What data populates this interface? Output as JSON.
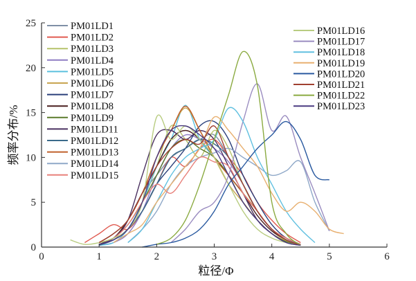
{
  "chart_data": {
    "type": "line",
    "title": "",
    "xlabel": "粒径/Φ",
    "ylabel": "频率分布/%",
    "xlim": [
      0,
      6
    ],
    "ylim": [
      0,
      25
    ],
    "xticks": [
      "0",
      "1",
      "2",
      "3",
      "4",
      "5",
      "6"
    ],
    "yticks": [
      "0",
      "5",
      "10",
      "15",
      "20",
      "25"
    ],
    "grid": false,
    "legend_placement": "top-left and top-right (two columns)",
    "series": [
      {
        "name": "PM01LD1",
        "color": "#7f8fa6",
        "x0": 1.0,
        "step": 0.25,
        "y": [
          0.5,
          1.5,
          3,
          6,
          8,
          10,
          11,
          12,
          12.5,
          10,
          7,
          4,
          2,
          1,
          0.3
        ]
      },
      {
        "name": "PM01LD2",
        "color": "#e05a50",
        "x0": 0.75,
        "step": 0.25,
        "y": [
          0.5,
          1.5,
          2.5,
          2,
          4,
          7,
          10,
          9,
          11,
          12,
          10,
          8,
          5,
          3,
          1.5,
          0.5
        ]
      },
      {
        "name": "PM01LD3",
        "color": "#b5c26a",
        "x0": 1.0,
        "step": 0.25,
        "y": [
          0.3,
          1,
          2,
          5,
          9,
          13.5,
          12,
          10,
          13,
          11,
          7,
          4,
          2,
          1,
          0.3
        ]
      },
      {
        "name": "PM01LD4",
        "color": "#8e7cc3",
        "x0": 1.0,
        "step": 0.25,
        "y": [
          0.2,
          0.5,
          1.5,
          4,
          8,
          11,
          12.5,
          12,
          11,
          9.5,
          7,
          4,
          2,
          1,
          0.3
        ]
      },
      {
        "name": "PM01LD5",
        "color": "#5bc0de",
        "x0": 1.0,
        "step": 0.25,
        "y": [
          0.2,
          0.5,
          2,
          5,
          9,
          12,
          15.8,
          12,
          10,
          8,
          6,
          4,
          2,
          1,
          0.3
        ]
      },
      {
        "name": "PM01LD6",
        "color": "#c8a550",
        "x0": 1.0,
        "step": 0.25,
        "y": [
          0.3,
          1,
          3,
          6,
          10,
          13,
          15.5,
          13,
          10,
          7,
          5,
          3,
          1.5,
          0.7,
          0.2
        ]
      },
      {
        "name": "PM01LD7",
        "color": "#2a3f7a",
        "x0": 1.0,
        "step": 0.25,
        "y": [
          0.3,
          0.8,
          2,
          4,
          7,
          9,
          11,
          13.5,
          14,
          12,
          8,
          5,
          2.5,
          1,
          0.3
        ]
      },
      {
        "name": "PM01LD8",
        "color": "#4a1f1f",
        "x0": 1.0,
        "step": 0.25,
        "y": [
          0.5,
          1,
          3,
          6,
          9,
          12,
          13,
          12,
          10,
          8,
          6,
          3.5,
          1.8,
          0.8,
          0.2
        ]
      },
      {
        "name": "PM01LD9",
        "color": "#5a7a2a",
        "x0": 1.0,
        "step": 0.25,
        "y": [
          0.3,
          1,
          2.5,
          5,
          8,
          11,
          12,
          11,
          10,
          8,
          5,
          3,
          1.5,
          0.6,
          0.2
        ]
      },
      {
        "name": "PM01LD11",
        "color": "#4a3060",
        "x0": 1.0,
        "step": 0.25,
        "y": [
          0.3,
          1,
          3,
          8,
          12.5,
          13,
          12,
          13,
          12,
          9,
          6,
          3,
          1.5,
          0.5,
          0.2
        ]
      },
      {
        "name": "PM01LD12",
        "color": "#3a6a8a",
        "x0": 1.0,
        "step": 0.25,
        "y": [
          0.2,
          0.8,
          2,
          4,
          7,
          10,
          11,
          12,
          11.5,
          10,
          7,
          4,
          2,
          0.8,
          0.2
        ]
      },
      {
        "name": "PM01LD13",
        "color": "#c0602a",
        "x0": 1.0,
        "step": 0.25,
        "y": [
          0.5,
          1.5,
          3,
          6,
          10,
          13,
          15.7,
          13,
          10,
          8,
          6,
          4,
          2,
          1,
          0.3
        ]
      },
      {
        "name": "PM01LD14",
        "color": "#8fa8c8",
        "x0": 1.5,
        "step": 0.25,
        "y": [
          0.5,
          2,
          4,
          7,
          9,
          10,
          10.5,
          11,
          10,
          9,
          8,
          8.5,
          9.5,
          5,
          1.8
        ]
      },
      {
        "name": "PM01LD15",
        "color": "#e8807a",
        "x0": 1.0,
        "step": 0.25,
        "y": [
          0.5,
          1,
          2.5,
          5,
          7,
          6,
          8,
          10,
          9.5,
          9,
          6,
          4,
          2,
          1,
          0.3
        ]
      },
      {
        "name": "PM01LD16",
        "color": "#b8cc80",
        "x0": 0.5,
        "step": 0.25,
        "y": [
          0.8,
          0.3,
          0.5,
          1,
          2,
          5,
          14.5,
          12,
          13.5,
          12,
          10,
          7,
          4,
          2,
          1,
          0.5,
          0.2
        ]
      },
      {
        "name": "PM01LD17",
        "color": "#9a8cc0",
        "x0": 2.25,
        "step": 0.25,
        "y": [
          0.5,
          2,
          4,
          5,
          8,
          14,
          18.2,
          13,
          14.6,
          10,
          6,
          1.8
        ]
      },
      {
        "name": "PM01LD18",
        "color": "#60c0e0",
        "x0": 1.5,
        "step": 0.25,
        "y": [
          0.5,
          2,
          5,
          8,
          10,
          11,
          12,
          15.5,
          14,
          10,
          7,
          4,
          2,
          0.5
        ]
      },
      {
        "name": "PM01LD19",
        "color": "#e8b070",
        "x0": 1.25,
        "step": 0.25,
        "y": [
          0.5,
          1.5,
          2.5,
          5,
          7,
          9,
          11,
          14.5,
          13,
          11,
          9,
          6,
          4,
          5,
          4,
          2,
          1.5
        ]
      },
      {
        "name": "PM01LD20",
        "color": "#2a5aa0",
        "x0": 1.75,
        "step": 0.25,
        "y": [
          0,
          0.3,
          0.5,
          1,
          2,
          4,
          7,
          9,
          11,
          12.5,
          14,
          12,
          8,
          7.5
        ]
      },
      {
        "name": "PM01LD21",
        "color": "#a04030",
        "x0": 1.0,
        "step": 0.25,
        "y": [
          0.5,
          1.5,
          3,
          6,
          9,
          11,
          12,
          11.5,
          13.5,
          10,
          7,
          4,
          2,
          0.8,
          0.2
        ]
      },
      {
        "name": "PM01LD22",
        "color": "#8aaa40",
        "x0": 2.0,
        "step": 0.25,
        "y": [
          0.3,
          1,
          3,
          7,
          12,
          17,
          21.8,
          18,
          5,
          1.5,
          0.2
        ]
      },
      {
        "name": "PM01LD23",
        "color": "#4a3a80",
        "x0": 1.0,
        "step": 0.25,
        "y": [
          0.3,
          0.8,
          2,
          5,
          10,
          13,
          13.5,
          12.5,
          11,
          8,
          5,
          3,
          1.5,
          0.5,
          0.2
        ]
      }
    ]
  }
}
